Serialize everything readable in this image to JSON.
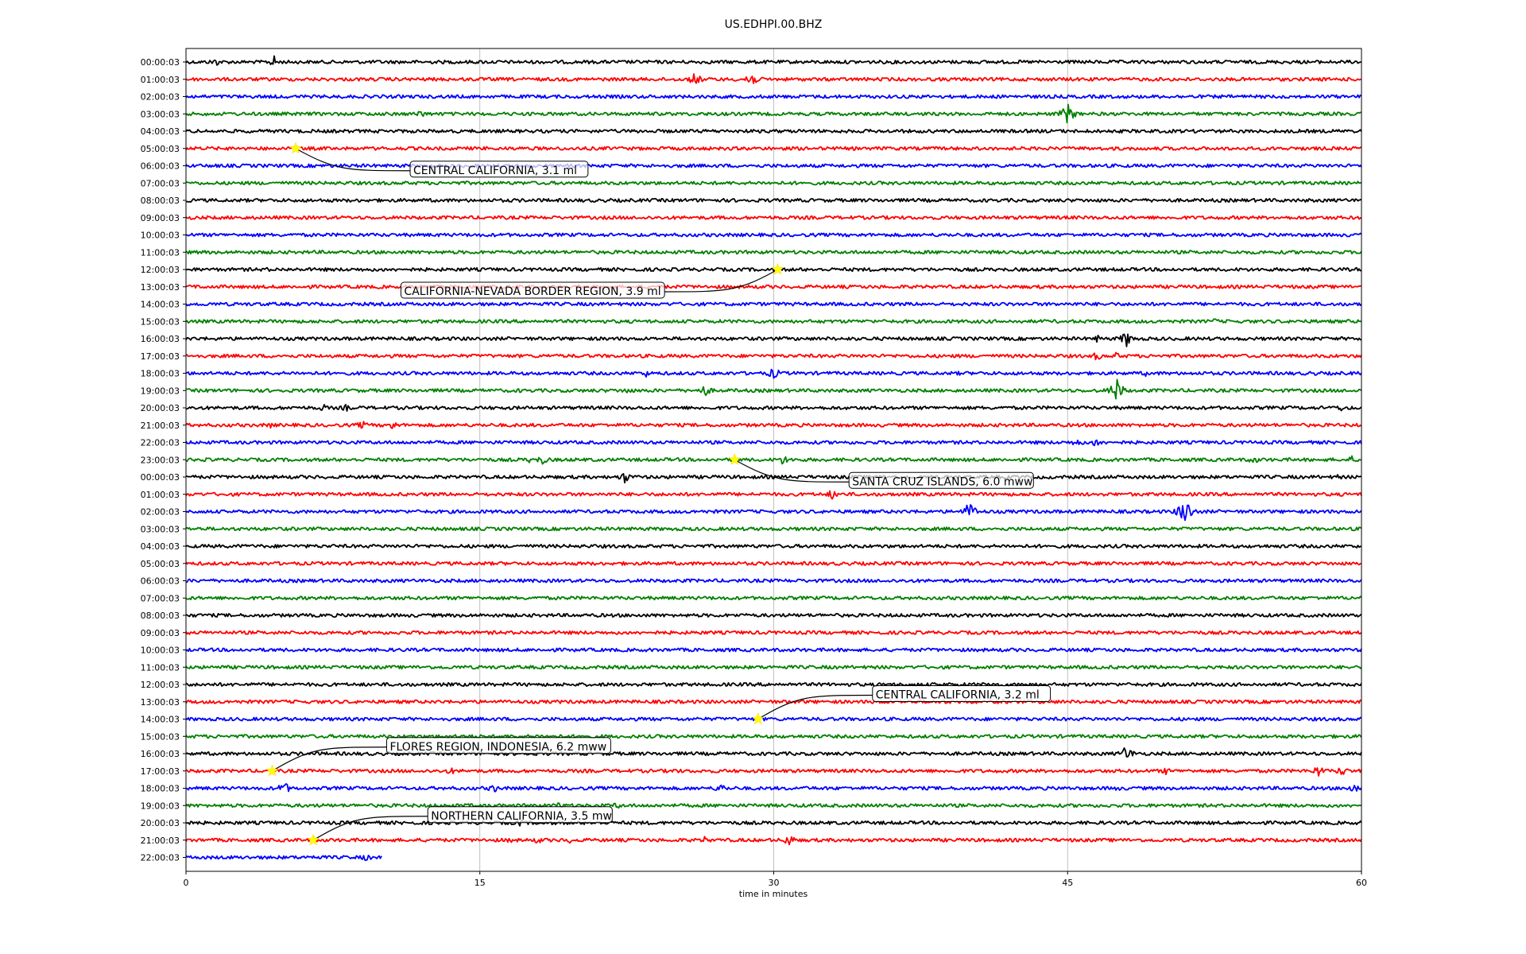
{
  "chart_data": {
    "type": "line",
    "title": "US.EDHPI.00.BHZ",
    "xlabel": "time in minutes",
    "ylabel": "",
    "xlim": [
      0,
      60
    ],
    "x_ticks": [
      "0",
      "15",
      "30",
      "45",
      "60"
    ],
    "x_tick_values": [
      0,
      15,
      30,
      45,
      60
    ],
    "grid": "vertical",
    "row_colors": [
      "#000000",
      "#ff0000",
      "#0000ff",
      "#008000"
    ],
    "row_labels": [
      "00:00:03",
      "01:00:03",
      "02:00:03",
      "03:00:03",
      "04:00:03",
      "05:00:03",
      "06:00:03",
      "07:00:03",
      "08:00:03",
      "09:00:03",
      "10:00:03",
      "11:00:03",
      "12:00:03",
      "13:00:03",
      "14:00:03",
      "15:00:03",
      "16:00:03",
      "17:00:03",
      "18:00:03",
      "19:00:03",
      "20:00:03",
      "21:00:03",
      "22:00:03",
      "23:00:03",
      "00:00:03",
      "01:00:03",
      "02:00:03",
      "03:00:03",
      "04:00:03",
      "05:00:03",
      "06:00:03",
      "07:00:03",
      "08:00:03",
      "09:00:03",
      "10:00:03",
      "11:00:03",
      "12:00:03",
      "13:00:03",
      "14:00:03",
      "15:00:03",
      "16:00:03",
      "17:00:03",
      "18:00:03",
      "19:00:03",
      "20:00:03",
      "21:00:03",
      "22:00:03"
    ],
    "last_row_end_minute": 10,
    "bursts": [
      {
        "row": 0,
        "minute": 1.5,
        "amp": 0.6
      },
      {
        "row": 0,
        "minute": 4.5,
        "amp": 0.8
      },
      {
        "row": 1,
        "minute": 26,
        "amp": 0.9
      },
      {
        "row": 1,
        "minute": 28.8,
        "amp": 1.2
      },
      {
        "row": 2,
        "minute": 22.5,
        "amp": 0.3
      },
      {
        "row": 3,
        "minute": 12,
        "amp": 0.6
      },
      {
        "row": 3,
        "minute": 45,
        "amp": 1.4
      },
      {
        "row": 12,
        "minute": 4.2,
        "amp": 0.3
      },
      {
        "row": 15,
        "minute": 52.5,
        "amp": 0.4
      },
      {
        "row": 16,
        "minute": 46.5,
        "amp": 0.5
      },
      {
        "row": 16,
        "minute": 48,
        "amp": 1.1
      },
      {
        "row": 17,
        "minute": 46.5,
        "amp": 0.6
      },
      {
        "row": 17,
        "minute": 47.5,
        "amp": 0.5
      },
      {
        "row": 18,
        "minute": 23.5,
        "amp": 0.5
      },
      {
        "row": 18,
        "minute": 30,
        "amp": 0.8
      },
      {
        "row": 18,
        "minute": 39.5,
        "amp": 0.3
      },
      {
        "row": 18,
        "minute": 49,
        "amp": 0.4
      },
      {
        "row": 18,
        "minute": 57.5,
        "amp": 0.4
      },
      {
        "row": 19,
        "minute": 17,
        "amp": 0.3
      },
      {
        "row": 19,
        "minute": 22.5,
        "amp": 0.5
      },
      {
        "row": 19,
        "minute": 26.5,
        "amp": 0.8
      },
      {
        "row": 19,
        "minute": 47.5,
        "amp": 1.6
      },
      {
        "row": 20,
        "minute": 7,
        "amp": 0.5
      },
      {
        "row": 20,
        "minute": 8.2,
        "amp": 0.5
      },
      {
        "row": 20,
        "minute": 59,
        "amp": 0.5
      },
      {
        "row": 21,
        "minute": 4.3,
        "amp": 0.4
      },
      {
        "row": 21,
        "minute": 9,
        "amp": 0.6
      },
      {
        "row": 21,
        "minute": 10.5,
        "amp": 0.7
      },
      {
        "row": 22,
        "minute": 45.5,
        "amp": 0.6
      },
      {
        "row": 22,
        "minute": 46.5,
        "amp": 0.7
      },
      {
        "row": 23,
        "minute": 17.5,
        "amp": 0.4
      },
      {
        "row": 23,
        "minute": 18.2,
        "amp": 0.7
      },
      {
        "row": 23,
        "minute": 30.5,
        "amp": 0.7
      },
      {
        "row": 23,
        "minute": 54.5,
        "amp": 0.6
      },
      {
        "row": 23,
        "minute": 59.5,
        "amp": 0.5
      },
      {
        "row": 24,
        "minute": 22.4,
        "amp": 0.8
      },
      {
        "row": 24,
        "minute": 58.8,
        "amp": 0.4
      },
      {
        "row": 25,
        "minute": 33,
        "amp": 0.7
      },
      {
        "row": 26,
        "minute": 40,
        "amp": 1.3
      },
      {
        "row": 26,
        "minute": 51,
        "amp": 1.9
      },
      {
        "row": 40,
        "minute": 48,
        "amp": 1.1
      },
      {
        "row": 41,
        "minute": 13.5,
        "amp": 0.5
      },
      {
        "row": 41,
        "minute": 25,
        "amp": 0.4
      },
      {
        "row": 41,
        "minute": 50,
        "amp": 0.5
      },
      {
        "row": 41,
        "minute": 57.8,
        "amp": 0.8
      },
      {
        "row": 41,
        "minute": 59,
        "amp": 0.7
      },
      {
        "row": 42,
        "minute": 5,
        "amp": 0.9
      },
      {
        "row": 42,
        "minute": 15.7,
        "amp": 0.6
      },
      {
        "row": 42,
        "minute": 27.3,
        "amp": 0.7
      },
      {
        "row": 42,
        "minute": 47.5,
        "amp": 0.4
      },
      {
        "row": 42,
        "minute": 59.6,
        "amp": 0.7
      },
      {
        "row": 43,
        "minute": 19,
        "amp": 0.5
      },
      {
        "row": 43,
        "minute": 22,
        "amp": 0.5
      },
      {
        "row": 44,
        "minute": 17,
        "amp": 0.5
      },
      {
        "row": 45,
        "minute": 16.5,
        "amp": 0.4
      },
      {
        "row": 45,
        "minute": 18,
        "amp": 0.5
      },
      {
        "row": 45,
        "minute": 19.5,
        "amp": 0.5
      },
      {
        "row": 45,
        "minute": 26.5,
        "amp": 0.5
      },
      {
        "row": 45,
        "minute": 30.8,
        "amp": 0.8
      },
      {
        "row": 46,
        "minute": 6.5,
        "amp": 0.4
      },
      {
        "row": 46,
        "minute": 9.2,
        "amp": 0.5
      }
    ],
    "events": [
      {
        "label": "CENTRAL CALIFORNIA, 3.1 ml",
        "row": 5,
        "minute": 5.6
      },
      {
        "label": "CALIFORNIA-NEVADA BORDER REGION, 3.9 ml",
        "row": 12,
        "minute": 30.2
      },
      {
        "label": "SANTA CRUZ ISLANDS, 6.0 mww",
        "row": 23,
        "minute": 28.0
      },
      {
        "label": "CENTRAL CALIFORNIA, 3.2 ml",
        "row": 38,
        "minute": 29.2
      },
      {
        "label": "FLORES REGION, INDONESIA, 6.2 mww",
        "row": 41,
        "minute": 4.4
      },
      {
        "label": "NORTHERN CALIFORNIA, 3.5 mw",
        "row": 45,
        "minute": 6.5
      }
    ],
    "event_marker_color": "#ffff00"
  }
}
